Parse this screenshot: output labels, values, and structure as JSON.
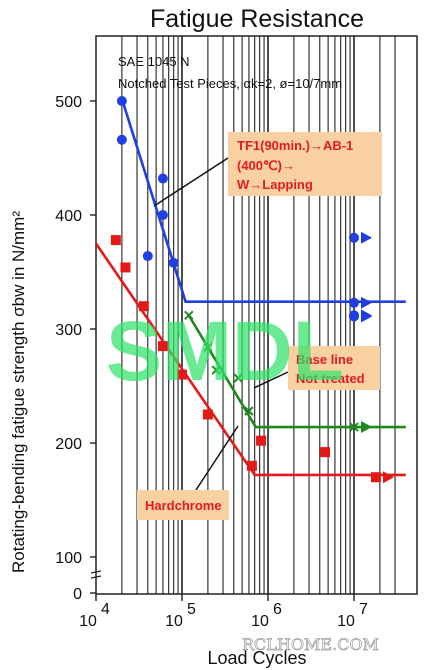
{
  "chart_data": {
    "type": "scatter",
    "title": "Fatigue Resistance",
    "material": "SAE 1045 N",
    "specimen": "Notched Test Pieces, αk=2, ø=10/7mm",
    "xlabel": "Load Cycles",
    "ylabel": "Rotating-bending fatigue strength σbw  in N/mm²",
    "x_scale": "log",
    "xlim": [
      10000,
      40000000
    ],
    "ylim": [
      0,
      520
    ],
    "y_axis_break": true,
    "grid": "vertical",
    "x_ticks": [
      {
        "value": 10000,
        "base": "10",
        "exp": "4"
      },
      {
        "value": 100000,
        "base": "10",
        "exp": "5"
      },
      {
        "value": 1000000,
        "base": "10",
        "exp": "6"
      },
      {
        "value": 10000000,
        "base": "10",
        "exp": "7"
      }
    ],
    "y_ticks": [
      {
        "value": 0,
        "label": "0"
      },
      {
        "value": 100,
        "label": "100"
      },
      {
        "value": 200,
        "label": "200"
      },
      {
        "value": 300,
        "label": "300"
      },
      {
        "value": 400,
        "label": "400"
      },
      {
        "value": 500,
        "label": "500"
      }
    ],
    "series": [
      {
        "label": "TF1(90min.)→AB-1 (400℃)→ W→Lapping",
        "label_lines": [
          "TF1(90min.)→AB-1",
          "(400℃)→",
          "W→Lapping"
        ],
        "color": "#1f3fe0",
        "marker": "circle",
        "points": [
          [
            20000,
            500
          ],
          [
            20000,
            466
          ],
          [
            40000,
            364
          ],
          [
            60000,
            432
          ],
          [
            60000,
            400
          ],
          [
            80000,
            358
          ]
        ],
        "runouts": [
          [
            10000000,
            380
          ],
          [
            10000000,
            323
          ],
          [
            10000000,
            311
          ],
          [
            10000000,
            312
          ]
        ],
        "fit_line": [
          [
            20000,
            502
          ],
          [
            110000,
            324
          ],
          [
            40000000,
            324
          ]
        ]
      },
      {
        "label": "Base line Not treated",
        "label_lines": [
          "Base line",
          "Not treated"
        ],
        "color": "#1e8a1e",
        "marker": "x",
        "points": [
          [
            120000,
            312
          ],
          [
            200000,
            284
          ],
          [
            250000,
            264
          ],
          [
            450000,
            257
          ],
          [
            600000,
            228
          ]
        ],
        "runouts": [
          [
            10000000,
            214
          ]
        ],
        "fit_line": [
          [
            120000,
            312
          ],
          [
            720000,
            214
          ],
          [
            40000000,
            214
          ]
        ]
      },
      {
        "label": "Hardchrome",
        "label_lines": [
          "Hardchrome"
        ],
        "color": "#e41a1a",
        "marker": "square",
        "points": [
          [
            17000,
            378
          ],
          [
            22000,
            354
          ],
          [
            36000,
            320
          ],
          [
            60000,
            285
          ],
          [
            100000,
            260
          ],
          [
            200000,
            225
          ],
          [
            650000,
            180
          ],
          [
            830000,
            202
          ],
          [
            4600000,
            192
          ]
        ],
        "runouts": [
          [
            18000000,
            170
          ]
        ],
        "fit_line": [
          [
            10000,
            375
          ],
          [
            700000,
            172
          ],
          [
            40000000,
            172
          ]
        ]
      }
    ],
    "watermarks": [
      "SMDL",
      "RCLHOME.COM"
    ]
  }
}
